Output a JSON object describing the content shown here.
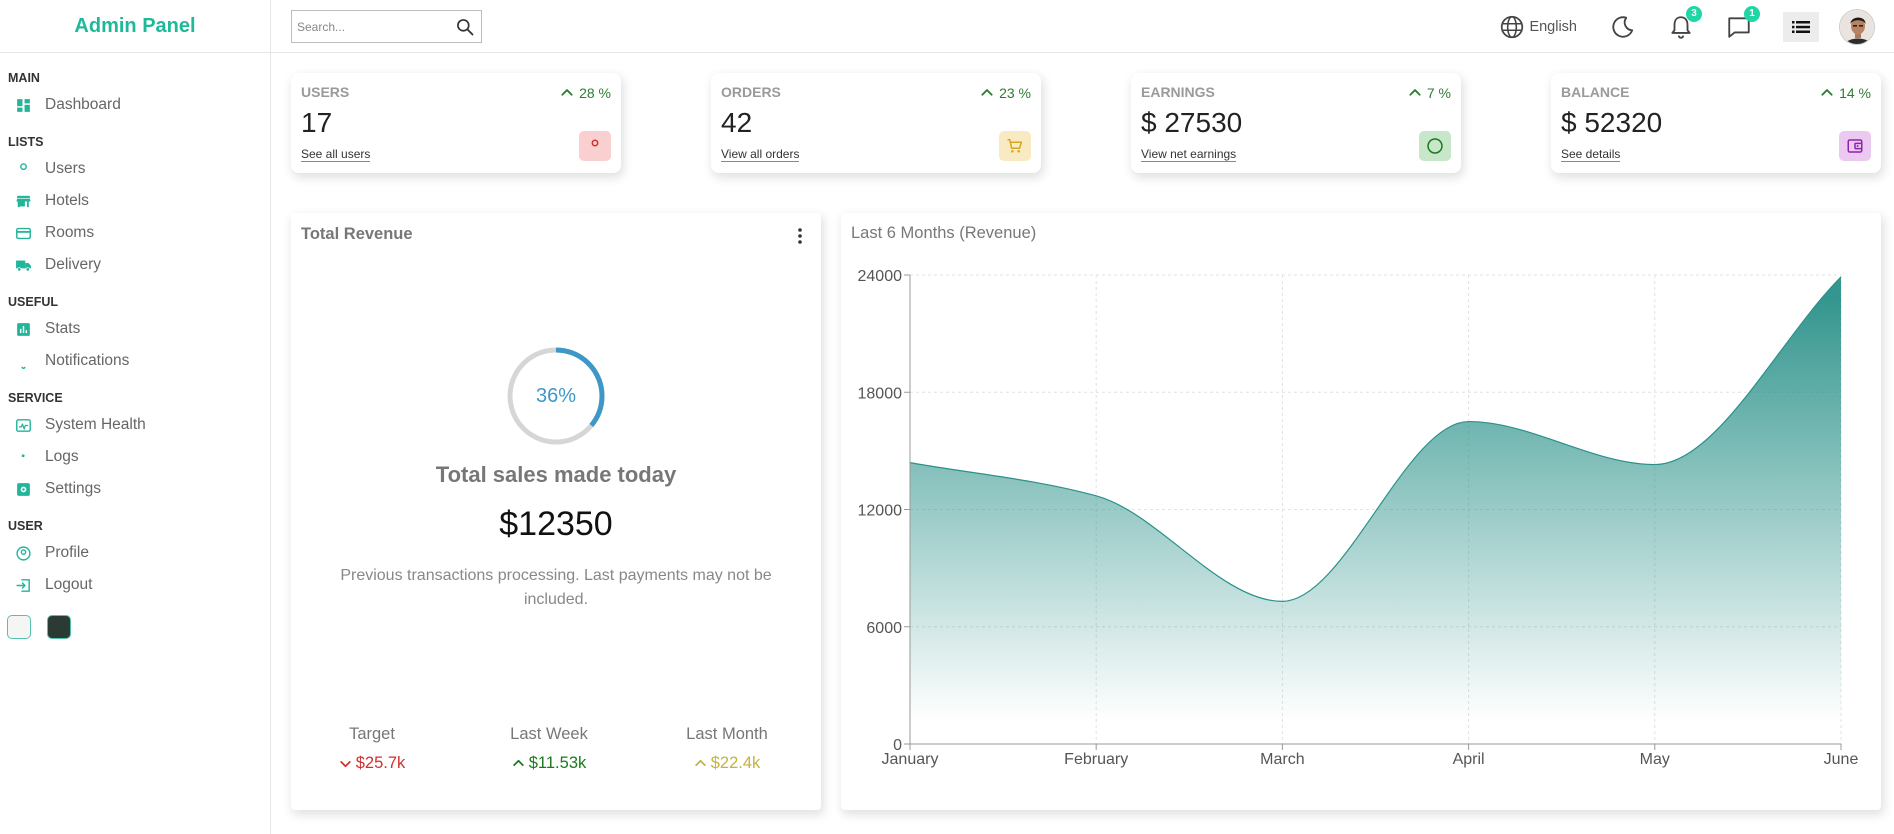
{
  "sidebar": {
    "logo": "Admin Panel",
    "sections": [
      {
        "title": "MAIN",
        "items": [
          {
            "label": "Dashboard",
            "icon": "dashboard-icon"
          }
        ]
      },
      {
        "title": "LISTS",
        "items": [
          {
            "label": "Users",
            "icon": "user-icon"
          },
          {
            "label": "Hotels",
            "icon": "store-icon"
          },
          {
            "label": "Rooms",
            "icon": "credit-card-icon"
          },
          {
            "label": "Delivery",
            "icon": "truck-icon"
          }
        ]
      },
      {
        "title": "USEFUL",
        "items": [
          {
            "label": "Stats",
            "icon": "bar-chart-icon"
          },
          {
            "label": "Notifications",
            "icon": "bell-icon"
          }
        ]
      },
      {
        "title": "SERVICE",
        "items": [
          {
            "label": "System Health",
            "icon": "health-icon"
          },
          {
            "label": "Logs",
            "icon": "psychology-icon"
          },
          {
            "label": "Settings",
            "icon": "settings-icon"
          }
        ]
      },
      {
        "title": "USER",
        "items": [
          {
            "label": "Profile",
            "icon": "account-circle-icon"
          },
          {
            "label": "Logout",
            "icon": "logout-icon"
          }
        ]
      }
    ]
  },
  "topbar": {
    "search_placeholder": "Search...",
    "language": "English",
    "notifications_count": "3",
    "messages_count": "1"
  },
  "widgets": [
    {
      "title": "USERS",
      "value": "17",
      "percent": "28 %",
      "link": "See all users",
      "icon": "person-icon",
      "icon_color": "#d32f2f",
      "icon_bg": "#f9cfd0"
    },
    {
      "title": "ORDERS",
      "value": "42",
      "percent": "23 %",
      "link": "View all orders",
      "icon": "shopping-cart-icon",
      "icon_color": "#daa520",
      "icon_bg": "#f8ebc4"
    },
    {
      "title": "EARNINGS",
      "value": "$ 27530",
      "percent": "7 %",
      "link": "View net earnings",
      "icon": "dollar-icon",
      "icon_color": "#1b7a1b",
      "icon_bg": "#c8e6c9"
    },
    {
      "title": "BALANCE",
      "value": "$ 52320",
      "percent": "14 %",
      "link": "See details",
      "icon": "wallet-icon",
      "icon_color": "#8e24aa",
      "icon_bg": "#ecc9f0"
    }
  ],
  "revenue": {
    "title": "Total Revenue",
    "progress_value": 36,
    "progress_text": "36%",
    "subtitle": "Total sales made today",
    "amount": "$12350",
    "description": "Previous transactions processing. Last payments may not be included.",
    "summary": [
      {
        "title": "Target",
        "value": "$25.7k",
        "trend": "down",
        "color": "#d32f2f"
      },
      {
        "title": "Last Week",
        "value": "$11.53k",
        "trend": "up",
        "color": "#1b7a1b"
      },
      {
        "title": "Last Month",
        "value": "$22.4k",
        "trend": "up",
        "color": "#c5b33e"
      }
    ]
  },
  "chart_data": {
    "type": "area",
    "title": "Last 6 Months (Revenue)",
    "categories": [
      "January",
      "February",
      "March",
      "April",
      "May",
      "June"
    ],
    "series": [
      {
        "values": [
          14400,
          12700,
          7300,
          16500,
          14300,
          23900
        ],
        "color": "#2a9189"
      }
    ],
    "ylim": [
      0,
      24000
    ],
    "yticks": [
      0,
      6000,
      12000,
      18000,
      24000
    ],
    "grid": true,
    "legend": "none"
  }
}
